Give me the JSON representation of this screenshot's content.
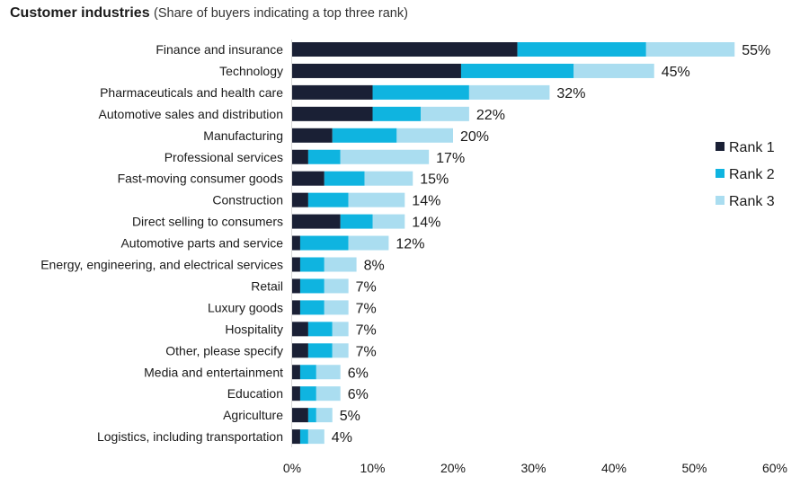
{
  "chart_data": {
    "type": "bar",
    "orientation": "horizontal",
    "stacked": true,
    "title": "Customer industries",
    "subtitle": "(Share of buyers indicating a top three rank)",
    "xlabel": "",
    "ylabel": "",
    "xlim": [
      0,
      60
    ],
    "x_ticks": [
      "0%",
      "10%",
      "20%",
      "30%",
      "40%",
      "50%",
      "60%"
    ],
    "grid": false,
    "legend_position": "right",
    "colors": {
      "Rank 1": "#1a2035",
      "Rank 2": "#0fb4e0",
      "Rank 3": "#aaddf0"
    },
    "categories": [
      "Finance and insurance",
      "Technology",
      "Pharmaceuticals and health care",
      "Automotive sales and distribution",
      "Manufacturing",
      "Professional services",
      "Fast-moving consumer goods",
      "Construction",
      "Direct selling to consumers",
      "Automotive parts and service",
      "Energy, engineering, and electrical services",
      "Retail",
      "Luxury goods",
      "Hospitality",
      "Other, please specify",
      "Media and entertainment",
      "Education",
      "Agriculture",
      "Logistics, including transportation"
    ],
    "series": [
      {
        "name": "Rank 1",
        "values": [
          28,
          21,
          10,
          10,
          5,
          2,
          4,
          2,
          6,
          1,
          1,
          1,
          1,
          2,
          2,
          1,
          1,
          2,
          1
        ]
      },
      {
        "name": "Rank 2",
        "values": [
          16,
          14,
          12,
          6,
          8,
          4,
          5,
          5,
          4,
          6,
          3,
          3,
          3,
          3,
          3,
          2,
          2,
          1,
          1
        ]
      },
      {
        "name": "Rank 3",
        "values": [
          11,
          10,
          10,
          6,
          7,
          11,
          6,
          7,
          4,
          5,
          4,
          3,
          3,
          2,
          2,
          3,
          3,
          2,
          2
        ]
      }
    ],
    "totals": [
      55,
      45,
      32,
      22,
      20,
      17,
      15,
      14,
      14,
      12,
      8,
      7,
      7,
      7,
      7,
      6,
      6,
      5,
      4
    ],
    "total_labels": [
      "55%",
      "45%",
      "32%",
      "22%",
      "20%",
      "17%",
      "15%",
      "14%",
      "14%",
      "12%",
      "8%",
      "7%",
      "7%",
      "7%",
      "7%",
      "6%",
      "6%",
      "5%",
      "4%"
    ]
  }
}
